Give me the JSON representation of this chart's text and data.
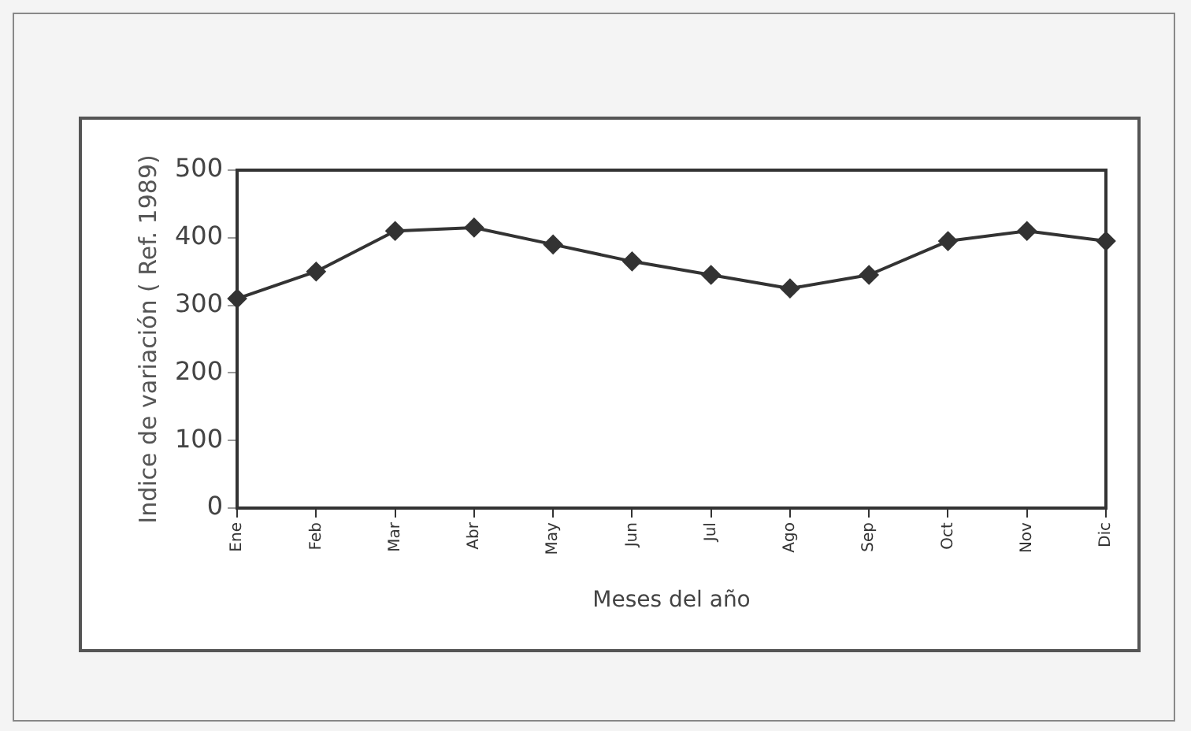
{
  "chart_data": {
    "type": "line",
    "xlabel": "Meses del año",
    "ylabel": "Indice de variación ( Ref. 1989)",
    "categories": [
      "Ene",
      "Feb",
      "Mar",
      "Abr",
      "May",
      "Jun",
      "Jul",
      "Ago",
      "Sep",
      "Oct",
      "Nov",
      "Dic"
    ],
    "series": [
      {
        "color": "#333333",
        "values": [
          310,
          350,
          410,
          415,
          390,
          365,
          345,
          325,
          345,
          395,
          410,
          395
        ]
      }
    ],
    "ylim": [
      0,
      500
    ],
    "yticks": [
      0,
      100,
      200,
      300,
      400,
      500
    ],
    "grid": false,
    "legend": false,
    "marker": "diamond",
    "line_style": "solid"
  }
}
